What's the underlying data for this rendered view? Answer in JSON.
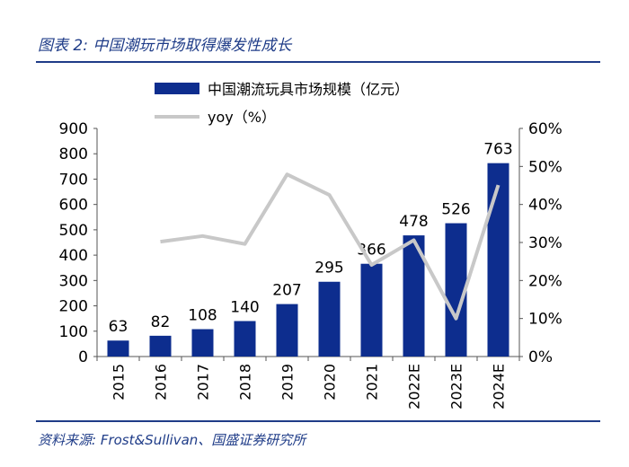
{
  "header": {
    "figure_title": "图表 2:  中国潮玩市场取得爆发性成长"
  },
  "footer": {
    "source": "资料来源:  Frost&Sullivan、国盛证券研究所"
  },
  "colors": {
    "title_blue": "#1f3c88",
    "bar_blue": "#0d2d8e",
    "line_gray": "#c8c8c8"
  },
  "chart_data": {
    "type": "bar",
    "categories": [
      "2015",
      "2016",
      "2017",
      "2018",
      "2019",
      "2020",
      "2021",
      "2022E",
      "2023E",
      "2024E"
    ],
    "series": [
      {
        "name": "中国潮流玩具市场规模（亿元）",
        "type": "bar",
        "axis": "left",
        "values": [
          63,
          82,
          108,
          140,
          207,
          295,
          366,
          478,
          526,
          763
        ],
        "data_labels": [
          "63",
          "82",
          "108",
          "140",
          "207",
          "295",
          "366",
          "478",
          "526",
          "763"
        ]
      },
      {
        "name": "yoy（%）",
        "type": "line",
        "axis": "right",
        "values": [
          null,
          30.2,
          31.7,
          29.6,
          47.9,
          42.5,
          24.1,
          30.6,
          10.0,
          45.1
        ]
      }
    ],
    "y_left": {
      "ylim": [
        0,
        900
      ],
      "ticks": [
        0,
        100,
        200,
        300,
        400,
        500,
        600,
        700,
        800,
        900
      ],
      "tick_labels": [
        "0",
        "100",
        "200",
        "300",
        "400",
        "500",
        "600",
        "700",
        "800",
        "900"
      ]
    },
    "y_right": {
      "ylim": [
        0,
        60
      ],
      "ticks": [
        0,
        10,
        20,
        30,
        40,
        50,
        60
      ],
      "tick_labels": [
        "0%",
        "10%",
        "20%",
        "30%",
        "40%",
        "50%",
        "60%"
      ]
    },
    "xlabel": "",
    "ylabel": "",
    "grid": false,
    "legend_position": "top"
  }
}
